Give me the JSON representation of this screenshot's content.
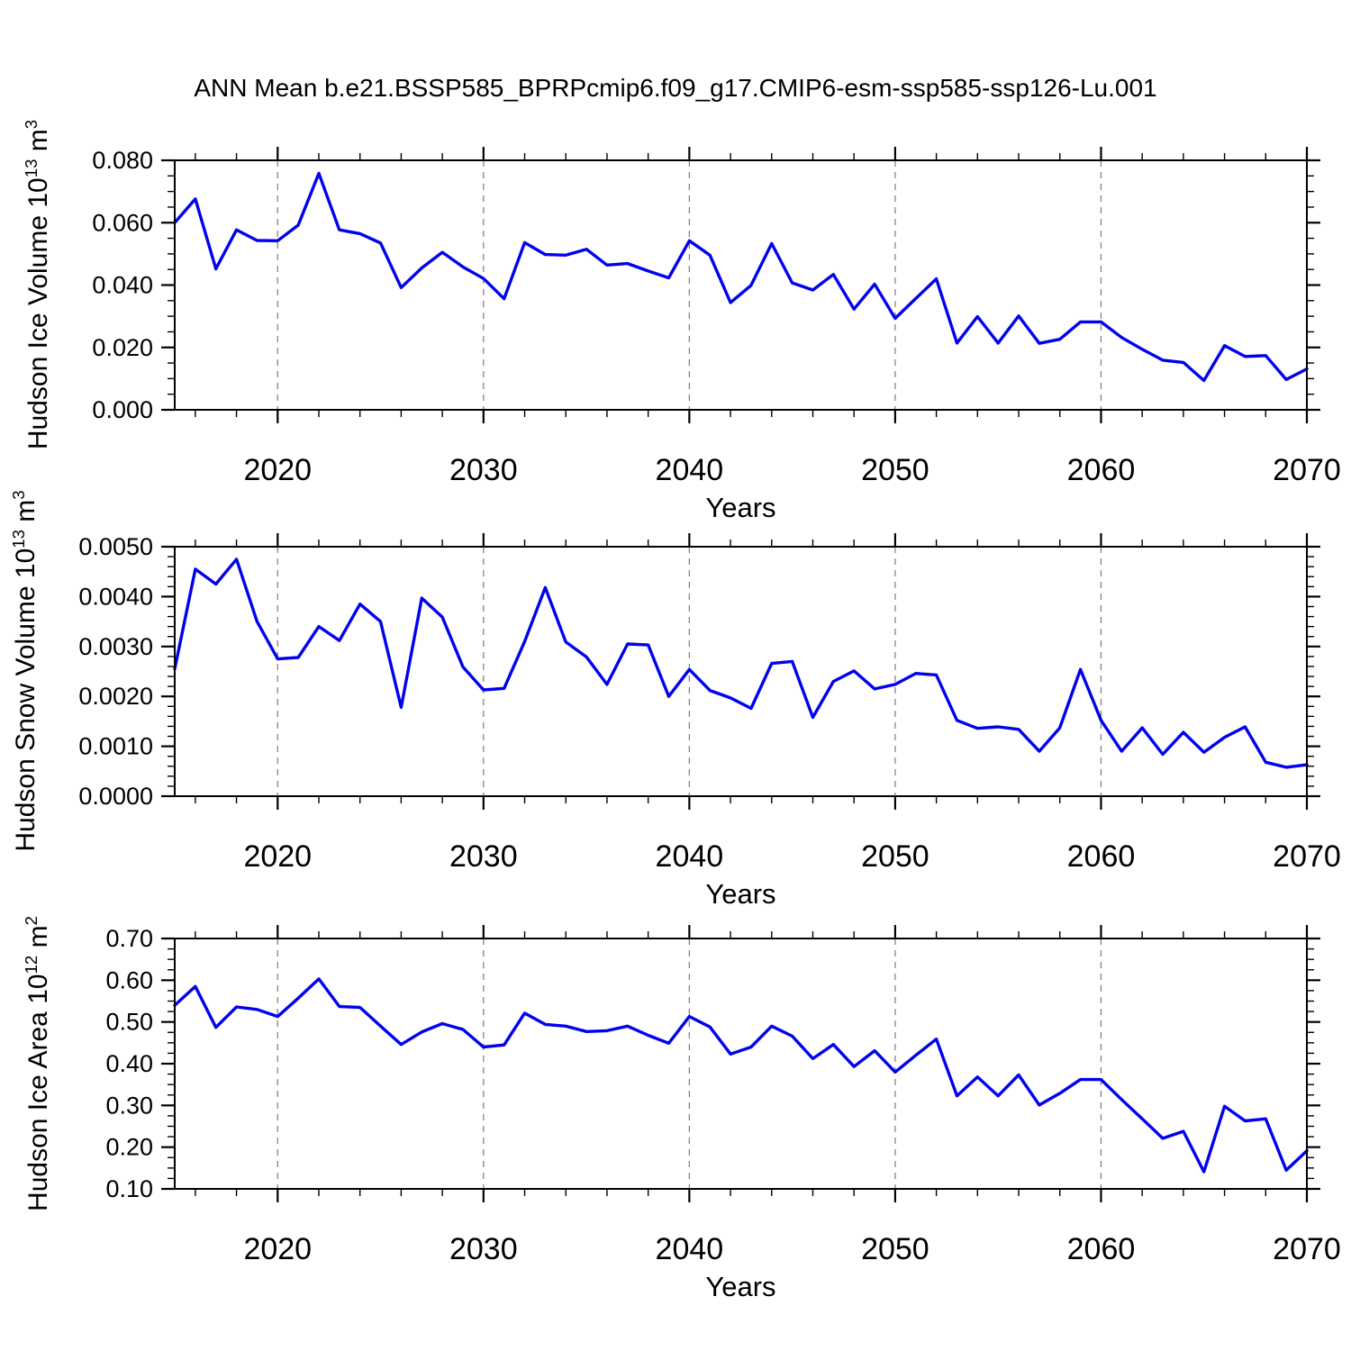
{
  "title": "ANN Mean b.e21.BSSP585_BPRPcmip6.f09_g17.CMIP6-esm-ssp585-ssp126-Lu.001",
  "style": {
    "line_color": "#0000ee",
    "grid_color": "#848484",
    "axis_color": "#000000",
    "text_color": "#000000",
    "background": "#ffffff"
  },
  "chart_data": [
    {
      "type": "line",
      "name": "hudson-ice-volume",
      "ylabel_prefix": "Hudson Ice Volume 10",
      "ylabel_exponent": "13",
      "ylabel_unit": " m",
      "ylabel_unit_exponent": "3",
      "xlabel": "Years",
      "x_range": [
        2015,
        2070
      ],
      "ylim": [
        0.0,
        0.08
      ],
      "ytick_step": 0.02,
      "y_minor_step": 0.005,
      "ytick_labels": [
        "0.000",
        "0.020",
        "0.040",
        "0.060",
        "0.080"
      ],
      "xticks": [
        2020,
        2030,
        2040,
        2050,
        2060,
        2070
      ],
      "xtick_labels": [
        "2020",
        "2030",
        "2040",
        "2050",
        "2060",
        "2070"
      ],
      "x_minor_step": 2,
      "grid_years": [
        2020,
        2030,
        2040,
        2050,
        2060
      ],
      "grid_on": true,
      "legend": "none",
      "x": [
        2015,
        2016,
        2017,
        2018,
        2019,
        2020,
        2021,
        2022,
        2023,
        2024,
        2025,
        2026,
        2027,
        2028,
        2029,
        2030,
        2031,
        2032,
        2033,
        2034,
        2035,
        2036,
        2037,
        2038,
        2039,
        2040,
        2041,
        2042,
        2043,
        2044,
        2045,
        2046,
        2047,
        2048,
        2049,
        2050,
        2051,
        2052,
        2053,
        2054,
        2055,
        2056,
        2057,
        2058,
        2059,
        2060,
        2061,
        2062,
        2063,
        2064,
        2065,
        2066,
        2067,
        2068,
        2069,
        2070
      ],
      "values": [
        0.06,
        0.0676,
        0.0452,
        0.0577,
        0.0543,
        0.0542,
        0.0592,
        0.0758,
        0.0577,
        0.0565,
        0.0535,
        0.0392,
        0.0455,
        0.0505,
        0.0458,
        0.0421,
        0.0356,
        0.0536,
        0.0498,
        0.0496,
        0.0515,
        0.0464,
        0.0469,
        0.0445,
        0.0423,
        0.0542,
        0.0496,
        0.0344,
        0.0399,
        0.0533,
        0.0407,
        0.0384,
        0.0434,
        0.0323,
        0.0403,
        0.0293,
        0.0357,
        0.042,
        0.0214,
        0.0299,
        0.0214,
        0.0301,
        0.0213,
        0.0226,
        0.0282,
        0.0282,
        0.0232,
        0.0194,
        0.0159,
        0.0152,
        0.0094,
        0.0206,
        0.0171,
        0.0174,
        0.0097,
        0.0131
      ]
    },
    {
      "type": "line",
      "name": "hudson-snow-volume",
      "ylabel_prefix": "Hudson Snow Volume 10",
      "ylabel_exponent": "13",
      "ylabel_unit": " m",
      "ylabel_unit_exponent": "3",
      "xlabel": "Years",
      "x_range": [
        2015,
        2070
      ],
      "ylim": [
        0.0,
        0.005
      ],
      "ytick_step": 0.001,
      "y_minor_step": 0.0002,
      "ytick_labels": [
        "0.0000",
        "0.0010",
        "0.0020",
        "0.0030",
        "0.0040",
        "0.0050"
      ],
      "xticks": [
        2020,
        2030,
        2040,
        2050,
        2060,
        2070
      ],
      "xtick_labels": [
        "2020",
        "2030",
        "2040",
        "2050",
        "2060",
        "2070"
      ],
      "x_minor_step": 2,
      "grid_years": [
        2020,
        2030,
        2040,
        2050,
        2060
      ],
      "grid_on": true,
      "legend": "none",
      "x": [
        2015,
        2016,
        2017,
        2018,
        2019,
        2020,
        2021,
        2022,
        2023,
        2024,
        2025,
        2026,
        2027,
        2028,
        2029,
        2030,
        2031,
        2032,
        2033,
        2034,
        2035,
        2036,
        2037,
        2038,
        2039,
        2040,
        2041,
        2042,
        2043,
        2044,
        2045,
        2046,
        2047,
        2048,
        2049,
        2050,
        2051,
        2052,
        2053,
        2054,
        2055,
        2056,
        2057,
        2058,
        2059,
        2060,
        2061,
        2062,
        2063,
        2064,
        2065,
        2066,
        2067,
        2068,
        2069,
        2070
      ],
      "values": [
        0.00255,
        0.00455,
        0.00425,
        0.00475,
        0.0035,
        0.00275,
        0.00278,
        0.0034,
        0.00312,
        0.00385,
        0.0035,
        0.00178,
        0.00397,
        0.00359,
        0.00259,
        0.00213,
        0.00216,
        0.0031,
        0.00418,
        0.00309,
        0.00279,
        0.00224,
        0.00305,
        0.00303,
        0.002,
        0.00254,
        0.00212,
        0.00197,
        0.00176,
        0.00266,
        0.0027,
        0.00158,
        0.0023,
        0.00251,
        0.00215,
        0.00224,
        0.00246,
        0.00243,
        0.00152,
        0.00136,
        0.00139,
        0.00134,
        0.0009,
        0.00137,
        0.00254,
        0.00152,
        0.0009,
        0.00137,
        0.00084,
        0.00128,
        0.00088,
        0.00118,
        0.00139,
        0.00068,
        0.00058,
        0.00063
      ]
    },
    {
      "type": "line",
      "name": "hudson-ice-area",
      "ylabel_prefix": "Hudson Ice Area 10",
      "ylabel_exponent": "12",
      "ylabel_unit": " m",
      "ylabel_unit_exponent": "2",
      "xlabel": "Years",
      "x_range": [
        2015,
        2070
      ],
      "ylim": [
        0.1,
        0.7
      ],
      "ytick_step": 0.1,
      "y_minor_step": 0.025,
      "ytick_labels": [
        "0.10",
        "0.20",
        "0.30",
        "0.40",
        "0.50",
        "0.60",
        "0.70"
      ],
      "xticks": [
        2020,
        2030,
        2040,
        2050,
        2060,
        2070
      ],
      "xtick_labels": [
        "2020",
        "2030",
        "2040",
        "2050",
        "2060",
        "2070"
      ],
      "x_minor_step": 2,
      "grid_years": [
        2020,
        2030,
        2040,
        2050,
        2060
      ],
      "grid_on": true,
      "legend": "none",
      "x": [
        2015,
        2016,
        2017,
        2018,
        2019,
        2020,
        2021,
        2022,
        2023,
        2024,
        2025,
        2026,
        2027,
        2028,
        2029,
        2030,
        2031,
        2032,
        2033,
        2034,
        2035,
        2036,
        2037,
        2038,
        2039,
        2040,
        2041,
        2042,
        2043,
        2044,
        2045,
        2046,
        2047,
        2048,
        2049,
        2050,
        2051,
        2052,
        2053,
        2054,
        2055,
        2056,
        2057,
        2058,
        2059,
        2060,
        2061,
        2062,
        2063,
        2064,
        2065,
        2066,
        2067,
        2068,
        2069,
        2070
      ],
      "values": [
        0.54,
        0.585,
        0.487,
        0.536,
        0.53,
        0.513,
        0.557,
        0.603,
        0.537,
        0.535,
        0.49,
        0.446,
        0.476,
        0.496,
        0.482,
        0.44,
        0.445,
        0.521,
        0.494,
        0.49,
        0.477,
        0.479,
        0.49,
        0.468,
        0.449,
        0.513,
        0.488,
        0.423,
        0.44,
        0.49,
        0.466,
        0.412,
        0.446,
        0.393,
        0.431,
        0.38,
        0.42,
        0.459,
        0.323,
        0.368,
        0.323,
        0.373,
        0.301,
        0.329,
        0.362,
        0.362,
        0.314,
        0.268,
        0.221,
        0.238,
        0.141,
        0.298,
        0.263,
        0.268,
        0.145,
        0.191
      ]
    }
  ]
}
